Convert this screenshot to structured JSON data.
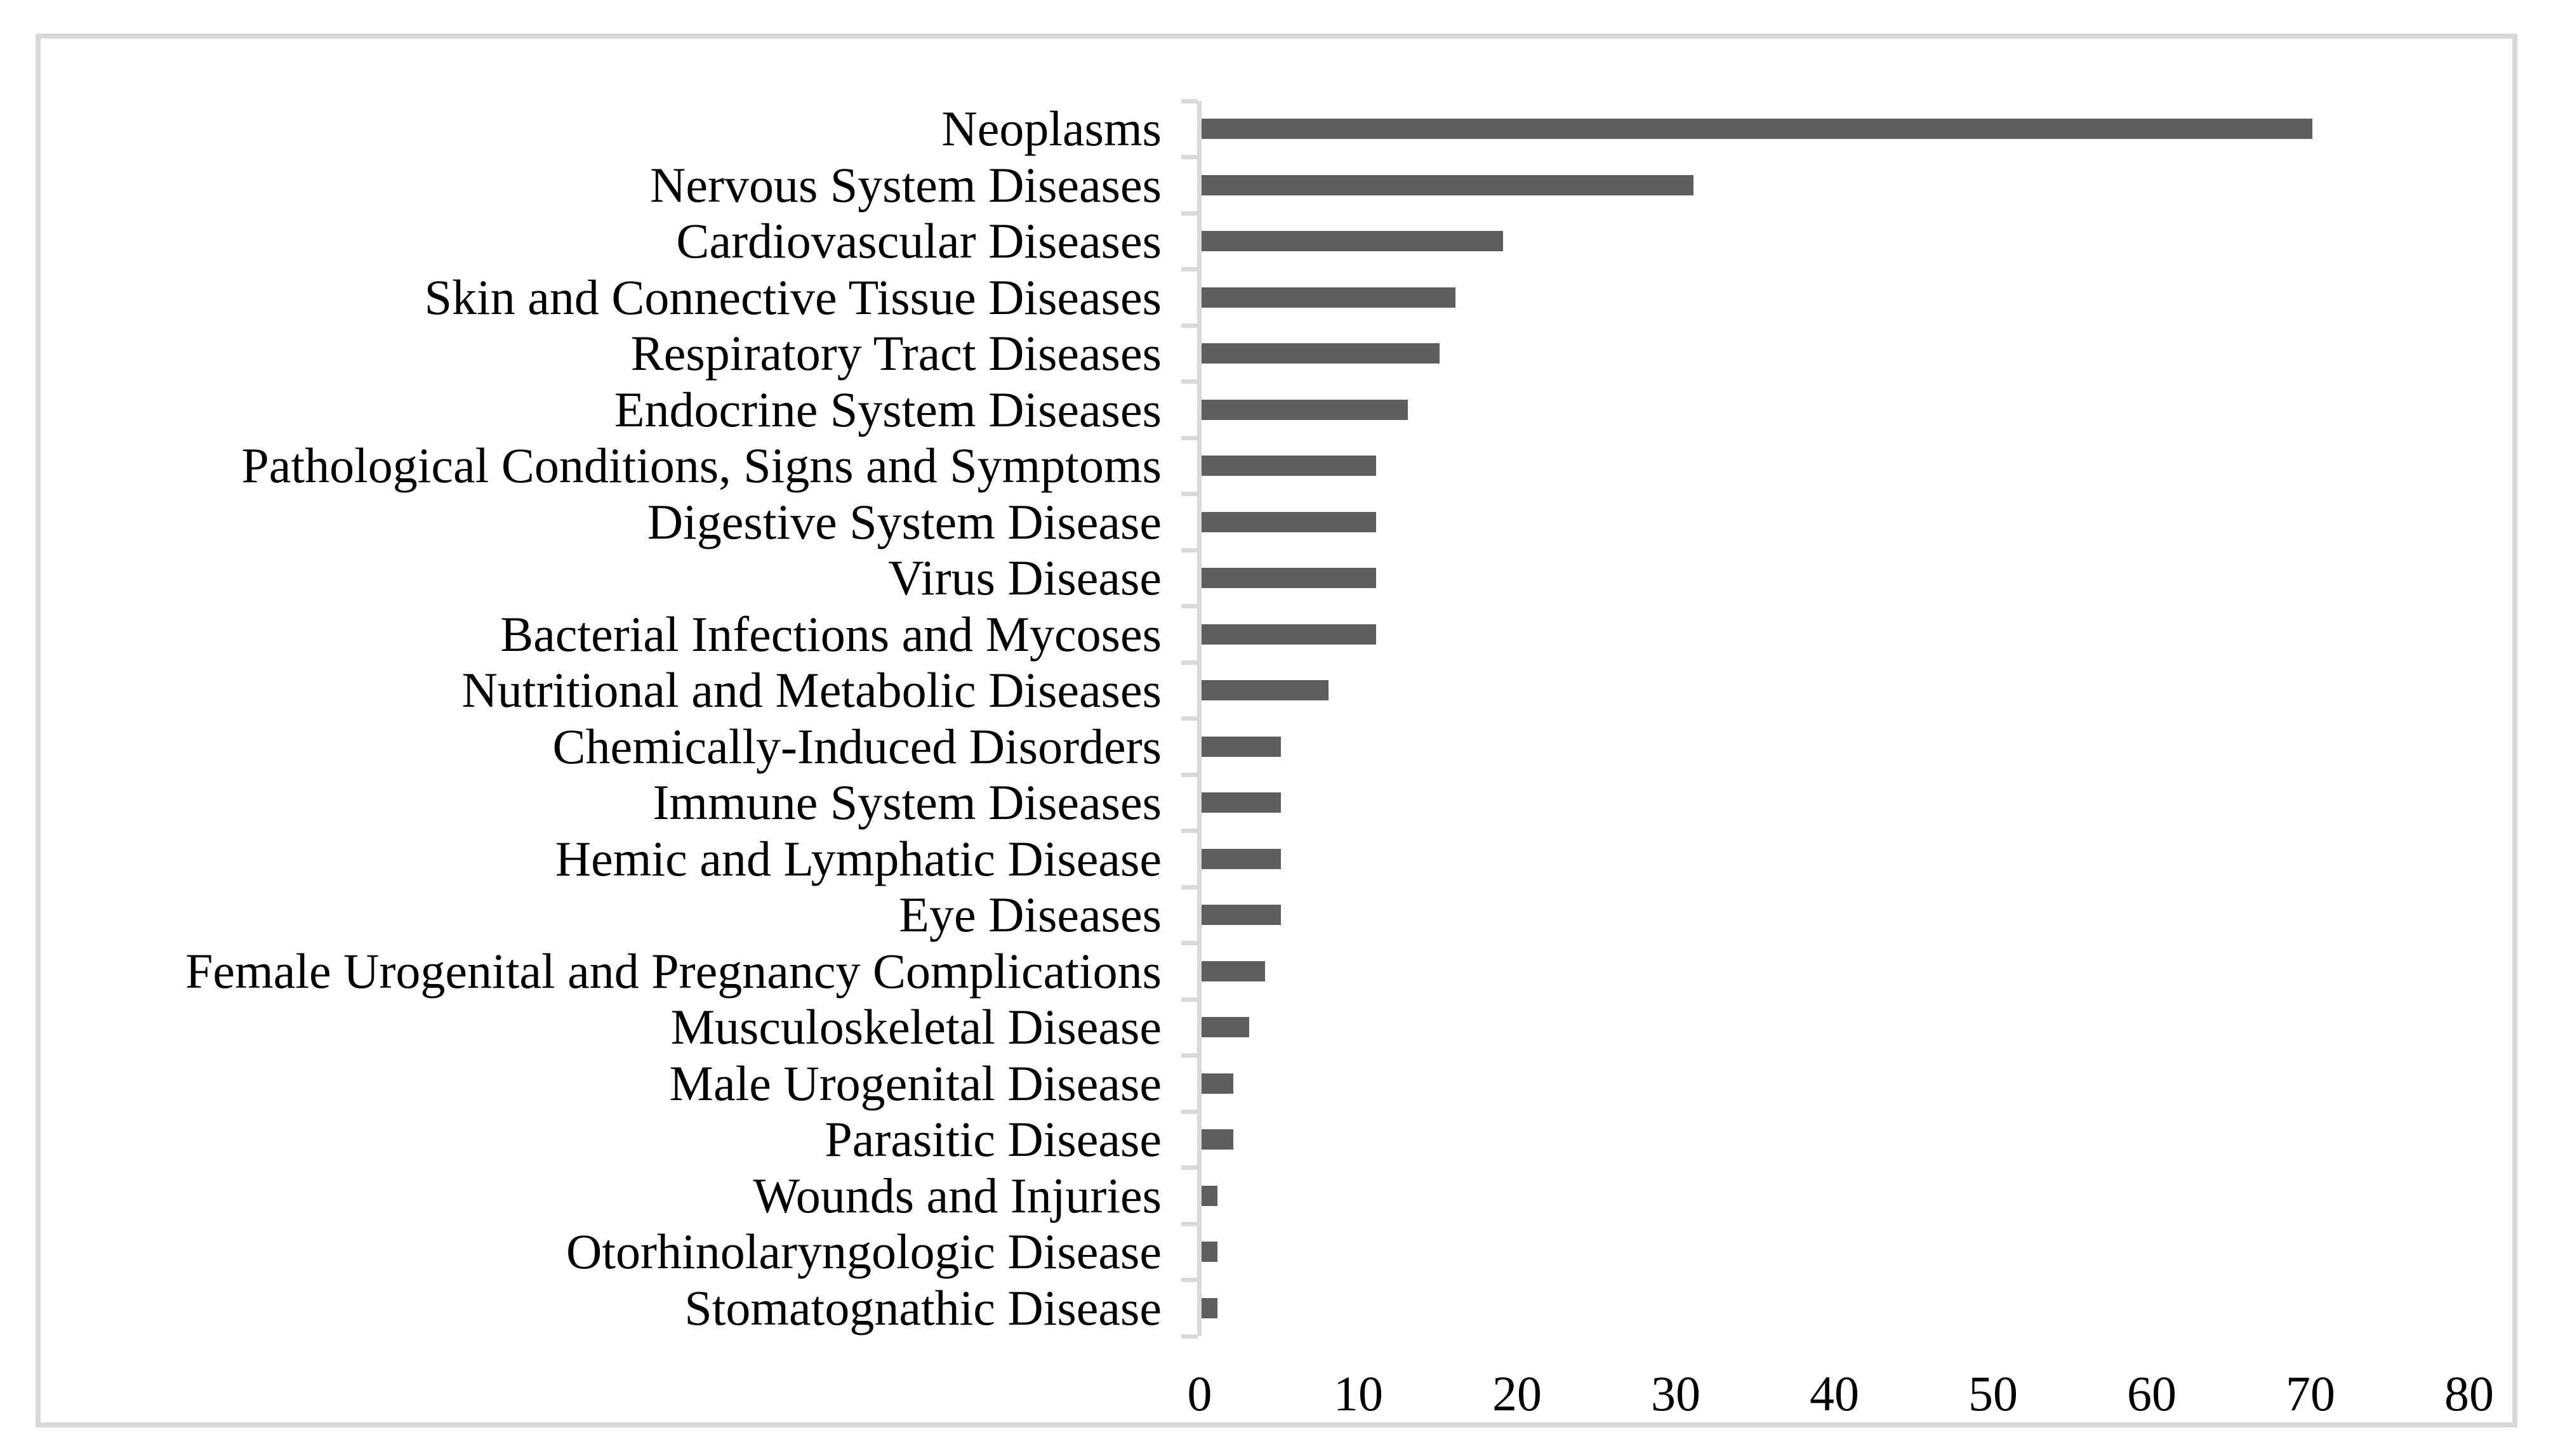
{
  "chart_data": {
    "type": "bar",
    "orientation": "horizontal",
    "title": "",
    "xlabel": "",
    "ylabel": "",
    "categories": [
      "Neoplasms",
      "Nervous System Diseases",
      "Cardiovascular Diseases",
      "Skin and Connective Tissue Diseases",
      "Respiratory Tract Diseases",
      "Endocrine System Diseases",
      "Pathological Conditions, Signs and Symptoms",
      "Digestive System Disease",
      "Virus Disease",
      "Bacterial Infections and Mycoses",
      "Nutritional and Metabolic Diseases",
      "Chemically-Induced Disorders",
      "Immune System Diseases",
      "Hemic and Lymphatic Disease",
      "Eye Diseases",
      "Female Urogenital and Pregnancy Complications",
      "Musculoskeletal Disease",
      "Male Urogenital Disease",
      "Parasitic Disease",
      "Wounds and Injuries",
      "Otorhinolaryngologic Disease",
      "Stomatognathic Disease"
    ],
    "values": [
      70,
      31,
      19,
      16,
      15,
      13,
      11,
      11,
      11,
      11,
      8,
      5,
      5,
      5,
      5,
      4,
      3,
      2,
      2,
      1,
      1,
      1
    ],
    "xlim": [
      0,
      80
    ],
    "x_ticks": [
      0,
      10,
      20,
      30,
      40,
      50,
      60,
      70,
      80
    ],
    "grid": false,
    "legend": null,
    "bar_color": "#5e5e5e",
    "axis_color": "#d9d9d9",
    "frame_color": "#d9d9d9",
    "text_color": "#000000"
  }
}
